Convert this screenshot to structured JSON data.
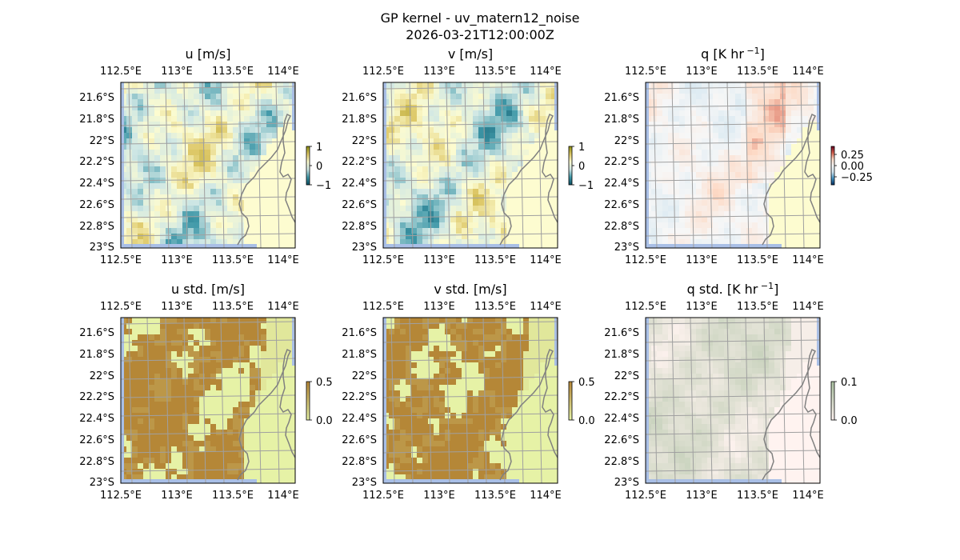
{
  "figure": {
    "title_line1": "GP kernel - uv_matern12_noise",
    "title_line2": "2026-03-21T12:00:00Z"
  },
  "colors": {
    "land": "#fdfcd0",
    "ocean": "#a9bfe6",
    "coast": "#808080",
    "grid": "#a0a0a0",
    "frame": "#000000"
  },
  "chart_data": [
    {
      "type": "heatmap",
      "id": "u",
      "title": "u [m/s]",
      "x_ticks": [
        "112.5°E",
        "113°E",
        "113.5°E",
        "114°E"
      ],
      "y_ticks": [
        "21.6°S",
        "21.8°S",
        "22°S",
        "22.2°S",
        "22.4°S",
        "22.6°S",
        "22.8°S",
        "23°S"
      ],
      "lon_range": [
        112.5,
        114.2
      ],
      "lat_range": [
        -23.0,
        -21.5
      ],
      "colormap": [
        "#0b4f63",
        "#3f98a8",
        "#cfe7e5",
        "#fdfcd0",
        "#dcc664",
        "#8c8f10"
      ],
      "colorbar_range": [
        -1,
        1
      ],
      "colorbar_ticks": [
        "1",
        "0",
        "−1"
      ]
    },
    {
      "type": "heatmap",
      "id": "v",
      "title": "v [m/s]",
      "x_ticks": [
        "112.5°E",
        "113°E",
        "113.5°E",
        "114°E"
      ],
      "y_ticks": [
        "21.6°S",
        "21.8°S",
        "22°S",
        "22.2°S",
        "22.4°S",
        "22.6°S",
        "22.8°S",
        "23°S"
      ],
      "lon_range": [
        112.5,
        114.2
      ],
      "lat_range": [
        -23.0,
        -21.5
      ],
      "colormap": [
        "#0b4f63",
        "#3f98a8",
        "#cfe7e5",
        "#fdfcd0",
        "#dcc664",
        "#8c8f10"
      ],
      "colorbar_range": [
        -1,
        1
      ],
      "colorbar_ticks": [
        "1",
        "0",
        "−1"
      ]
    },
    {
      "type": "heatmap",
      "id": "q",
      "title": "q [K hr",
      "title_sup": "−1",
      "title_end": "]",
      "x_ticks": [
        "112.5°E",
        "113°E",
        "113.5°E",
        "114°E"
      ],
      "y_ticks": [
        "21.6°S",
        "21.8°S",
        "22°S",
        "22.2°S",
        "22.4°S",
        "22.6°S",
        "22.8°S",
        "23°S"
      ],
      "lon_range": [
        112.5,
        114.2
      ],
      "lat_range": [
        -23.0,
        -21.5
      ],
      "colormap": [
        "#053061",
        "#4393c3",
        "#d1e5f0",
        "#f7f7f7",
        "#fddbc7",
        "#d6604d",
        "#67001f"
      ],
      "colorbar_range": [
        -0.35,
        0.35
      ],
      "colorbar_ticks": [
        "0.25",
        "0.00",
        "−0.25"
      ]
    },
    {
      "type": "heatmap",
      "id": "u_std",
      "title": "u std. [m/s]",
      "x_ticks": [
        "112.5°E",
        "113°E",
        "113.5°E",
        "114°E"
      ],
      "y_ticks": [
        "21.6°S",
        "21.8°S",
        "22°S",
        "22.2°S",
        "22.4°S",
        "22.6°S",
        "22.8°S",
        "23°S"
      ],
      "lon_range": [
        112.5,
        114.2
      ],
      "lat_range": [
        -23.0,
        -21.5
      ],
      "colormap": [
        "#e6f2a6",
        "#b58737"
      ],
      "colorbar_range": [
        0,
        0.5
      ],
      "colorbar_ticks": [
        "0.5",
        "0.0"
      ]
    },
    {
      "type": "heatmap",
      "id": "v_std",
      "title": "v std. [m/s]",
      "x_ticks": [
        "112.5°E",
        "113°E",
        "113.5°E",
        "114°E"
      ],
      "y_ticks": [
        "21.6°S",
        "21.8°S",
        "22°S",
        "22.2°S",
        "22.4°S",
        "22.6°S",
        "22.8°S",
        "23°S"
      ],
      "lon_range": [
        112.5,
        114.2
      ],
      "lat_range": [
        -23.0,
        -21.5
      ],
      "colormap": [
        "#e6f2a6",
        "#b58737"
      ],
      "colorbar_range": [
        0,
        0.5
      ],
      "colorbar_ticks": [
        "0.5",
        "0.0"
      ]
    },
    {
      "type": "heatmap",
      "id": "q_std",
      "title": "q std. [K hr",
      "title_sup": "−1",
      "title_end": "]",
      "x_ticks": [
        "112.5°E",
        "113°E",
        "113.5°E",
        "114°E"
      ],
      "y_ticks": [
        "21.6°S",
        "21.8°S",
        "22°S",
        "22.2°S",
        "22.4°S",
        "22.6°S",
        "22.8°S",
        "23°S"
      ],
      "lon_range": [
        112.5,
        114.2
      ],
      "lat_range": [
        -23.0,
        -21.5
      ],
      "colormap": [
        "#fff3f0",
        "#a9c0a0"
      ],
      "colorbar_range": [
        0,
        0.1
      ],
      "colorbar_ticks": [
        "0.1",
        "0.0"
      ]
    }
  ]
}
